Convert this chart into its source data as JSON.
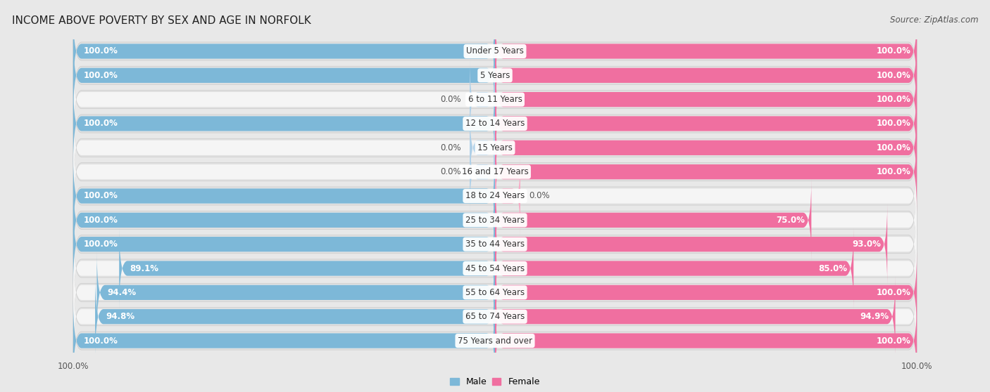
{
  "title": "INCOME ABOVE POVERTY BY SEX AND AGE IN NORFOLK",
  "source": "Source: ZipAtlas.com",
  "categories": [
    "Under 5 Years",
    "5 Years",
    "6 to 11 Years",
    "12 to 14 Years",
    "15 Years",
    "16 and 17 Years",
    "18 to 24 Years",
    "25 to 34 Years",
    "35 to 44 Years",
    "45 to 54 Years",
    "55 to 64 Years",
    "65 to 74 Years",
    "75 Years and over"
  ],
  "male_values": [
    100.0,
    100.0,
    0.0,
    100.0,
    0.0,
    0.0,
    100.0,
    100.0,
    100.0,
    89.1,
    94.4,
    94.8,
    100.0
  ],
  "female_values": [
    100.0,
    100.0,
    100.0,
    100.0,
    100.0,
    100.0,
    0.0,
    75.0,
    93.0,
    85.0,
    100.0,
    94.9,
    100.0
  ],
  "male_color": "#7db8d8",
  "female_color": "#f06fa0",
  "male_color_light": "#afd0e8",
  "bg_color": "#e8e8e8",
  "row_bg_color": "#d8d8d8",
  "bar_bg_left": "#f5f5f5",
  "bar_bg_right": "#f5f5f5",
  "max_val": 100.0,
  "bar_height": 0.62,
  "title_fontsize": 11,
  "label_fontsize": 8.5,
  "source_fontsize": 8.5,
  "axis_label_fontsize": 8.5
}
